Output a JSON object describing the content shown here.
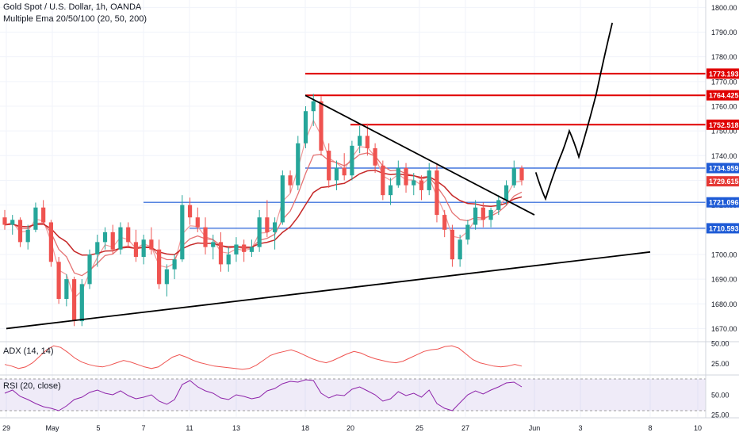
{
  "header": {
    "symbol_title": "Gold Spot / U.S. Dollar, 1h, OANDA",
    "indicator_title": "Multiple Ema 20/50/100 (20, 50, 200)"
  },
  "panes": {
    "adx_label": "ADX (14, 14)",
    "rsi_label": "RSI (20, close)"
  },
  "chart_data": [
    {
      "type": "candlestick",
      "pane": "price",
      "title": "Gold Spot / U.S. Dollar, 1h, OANDA",
      "ylim": [
        1665,
        1803
      ],
      "y_ticks": [
        1670,
        1680,
        1690,
        1700,
        1710,
        1720,
        1730,
        1740,
        1750,
        1760,
        1770,
        1780,
        1790,
        1800
      ],
      "y_tick_labels": [
        "1670.00",
        "1680.00",
        "1690.00",
        "1700.00",
        "1710.00",
        "1720.00",
        "1730.00",
        "1740.00",
        "1750.00",
        "1760.00",
        "1770.00",
        "1780.00",
        "1790.00",
        "1800.00"
      ],
      "x_tick_labels": [
        "29",
        "May",
        "5",
        "7",
        "11",
        "13",
        "18",
        "20",
        "25",
        "27",
        "Jun",
        "3",
        "8",
        "10"
      ],
      "price_labels": [
        {
          "value": 1773.193,
          "text": "1773.193",
          "color": "#e00000"
        },
        {
          "value": 1764.425,
          "text": "1764.425",
          "color": "#e00000"
        },
        {
          "value": 1752.518,
          "text": "1752.518",
          "color": "#e00000"
        },
        {
          "value": 1734.959,
          "text": "1734.959",
          "color": "#1e5bd6"
        },
        {
          "value": 1729.615,
          "text": "1729.615",
          "color": "#e53935"
        },
        {
          "value": 1721.096,
          "text": "1721.096",
          "color": "#1e5bd6"
        },
        {
          "value": 1710.593,
          "text": "1710.593",
          "color": "#1e5bd6"
        }
      ],
      "horizontal_levels": [
        {
          "value": 1773.193,
          "color": "#e00000",
          "from": "18"
        },
        {
          "value": 1764.425,
          "color": "#e00000",
          "from": "18"
        },
        {
          "value": 1752.518,
          "color": "#e00000",
          "from": "20"
        },
        {
          "value": 1734.959,
          "color": "#1e5bd6",
          "from": "18"
        },
        {
          "value": 1721.096,
          "color": "#1e5bd6",
          "from": "7"
        },
        {
          "value": 1710.593,
          "color": "#1e5bd6",
          "from": "11"
        }
      ],
      "trendlines": [
        {
          "from": [
            "29",
            1670.0
          ],
          "to": [
            "8",
            1701.0
          ],
          "color": "#000000"
        },
        {
          "from": [
            "18",
            1764.4
          ],
          "to": [
            "Jun",
            1716.0
          ],
          "color": "#000000"
        }
      ],
      "projection_path_values": [
        1733.0,
        1722.5,
        1739.0,
        1750.0,
        1739.5,
        1765.0,
        1793.5
      ],
      "candles": [
        [
          1715,
          1718,
          1710,
          1712
        ],
        [
          1712,
          1716,
          1708,
          1714
        ],
        [
          1714,
          1715,
          1703,
          1705
        ],
        [
          1705,
          1712,
          1702,
          1710
        ],
        [
          1710,
          1721,
          1709,
          1719
        ],
        [
          1719,
          1722,
          1712,
          1713
        ],
        [
          1713,
          1714,
          1695,
          1697
        ],
        [
          1697,
          1699,
          1680,
          1682
        ],
        [
          1682,
          1692,
          1679,
          1690
        ],
        [
          1690,
          1691,
          1671,
          1673
        ],
        [
          1673,
          1690,
          1671,
          1688
        ],
        [
          1688,
          1702,
          1686,
          1700
        ],
        [
          1700,
          1708,
          1695,
          1705
        ],
        [
          1705,
          1711,
          1702,
          1709
        ],
        [
          1709,
          1712,
          1700,
          1702
        ],
        [
          1702,
          1713,
          1700,
          1711
        ],
        [
          1711,
          1713,
          1703,
          1705
        ],
        [
          1705,
          1710,
          1697,
          1699
        ],
        [
          1699,
          1708,
          1696,
          1706
        ],
        [
          1706,
          1711,
          1700,
          1702
        ],
        [
          1702,
          1706,
          1686,
          1688
        ],
        [
          1688,
          1696,
          1683,
          1694
        ],
        [
          1694,
          1700,
          1690,
          1698
        ],
        [
          1698,
          1724,
          1697,
          1720
        ],
        [
          1720,
          1723,
          1712,
          1715
        ],
        [
          1715,
          1719,
          1709,
          1711
        ],
        [
          1711,
          1715,
          1700,
          1703
        ],
        [
          1703,
          1708,
          1698,
          1705
        ],
        [
          1705,
          1709,
          1693,
          1696
        ],
        [
          1696,
          1703,
          1693,
          1700
        ],
        [
          1700,
          1707,
          1697,
          1704
        ],
        [
          1704,
          1706,
          1697,
          1701
        ],
        [
          1701,
          1706,
          1699,
          1703
        ],
        [
          1703,
          1718,
          1701,
          1715
        ],
        [
          1715,
          1722,
          1707,
          1709
        ],
        [
          1709,
          1715,
          1702,
          1713
        ],
        [
          1713,
          1734,
          1712,
          1732
        ],
        [
          1732,
          1734,
          1725,
          1728
        ],
        [
          1728,
          1748,
          1726,
          1745
        ],
        [
          1745,
          1760,
          1743,
          1758
        ],
        [
          1758,
          1765,
          1752,
          1762
        ],
        [
          1762,
          1764,
          1740,
          1742
        ],
        [
          1742,
          1745,
          1727,
          1730
        ],
        [
          1730,
          1738,
          1726,
          1735
        ],
        [
          1735,
          1741,
          1730,
          1732
        ],
        [
          1732,
          1746,
          1730,
          1744
        ],
        [
          1744,
          1752,
          1741,
          1748
        ],
        [
          1748,
          1753,
          1740,
          1743
        ],
        [
          1743,
          1745,
          1733,
          1736
        ],
        [
          1736,
          1738,
          1722,
          1724
        ],
        [
          1724,
          1731,
          1720,
          1728
        ],
        [
          1728,
          1738,
          1727,
          1735
        ],
        [
          1735,
          1737,
          1725,
          1728
        ],
        [
          1728,
          1733,
          1724,
          1730
        ],
        [
          1730,
          1732,
          1722,
          1726
        ],
        [
          1726,
          1737,
          1724,
          1734
        ],
        [
          1734,
          1737,
          1713,
          1716
        ],
        [
          1716,
          1718,
          1707,
          1710
        ],
        [
          1710,
          1712,
          1695,
          1698
        ],
        [
          1698,
          1708,
          1695,
          1706
        ],
        [
          1706,
          1714,
          1704,
          1712
        ],
        [
          1712,
          1722,
          1710,
          1719
        ],
        [
          1719,
          1721,
          1711,
          1714
        ],
        [
          1714,
          1719,
          1711,
          1718
        ],
        [
          1718,
          1724,
          1716,
          1722
        ],
        [
          1722,
          1730,
          1720,
          1728
        ],
        [
          1728,
          1738,
          1727,
          1735
        ],
        [
          1735,
          1736,
          1728,
          1730
        ]
      ]
    },
    {
      "type": "line",
      "pane": "adx",
      "title": "ADX (14, 14)",
      "ylim": [
        12,
        52
      ],
      "y_ticks": [
        25,
        50
      ],
      "y_tick_labels": [
        "25.00",
        "50.00"
      ],
      "series": [
        {
          "values": [
            24,
            22,
            19,
            21,
            26,
            34,
            42,
            47,
            45,
            39,
            32,
            27,
            24,
            22,
            21,
            23,
            26,
            29,
            27,
            24,
            21,
            19,
            21,
            27,
            33,
            36,
            33,
            29,
            26,
            24,
            22,
            21,
            20,
            19,
            18,
            19,
            23,
            29,
            35,
            38,
            40,
            42,
            39,
            35,
            31,
            28,
            26,
            29,
            33,
            37,
            40,
            38,
            34,
            31,
            29,
            27,
            26,
            28,
            32,
            36,
            40,
            42,
            43,
            46,
            47,
            44,
            37,
            30,
            26,
            24,
            22,
            21,
            22,
            24,
            22
          ]
        }
      ]
    },
    {
      "type": "line",
      "pane": "rsi",
      "title": "RSI (20, close)",
      "ylim": [
        22,
        75
      ],
      "y_ticks": [
        25,
        50
      ],
      "y_tick_labels": [
        "25.00",
        "50.00"
      ],
      "band": [
        30,
        70
      ],
      "series": [
        {
          "values": [
            52,
            56,
            48,
            44,
            39,
            35,
            33,
            30,
            36,
            44,
            47,
            53,
            56,
            52,
            50,
            55,
            49,
            45,
            47,
            50,
            42,
            38,
            44,
            63,
            68,
            60,
            55,
            52,
            46,
            44,
            50,
            48,
            45,
            47,
            55,
            58,
            64,
            67,
            66,
            69,
            68,
            52,
            46,
            50,
            49,
            57,
            60,
            55,
            50,
            42,
            45,
            54,
            49,
            52,
            47,
            56,
            39,
            33,
            30,
            40,
            50,
            55,
            51,
            56,
            60,
            65,
            66,
            60
          ]
        }
      ]
    }
  ]
}
